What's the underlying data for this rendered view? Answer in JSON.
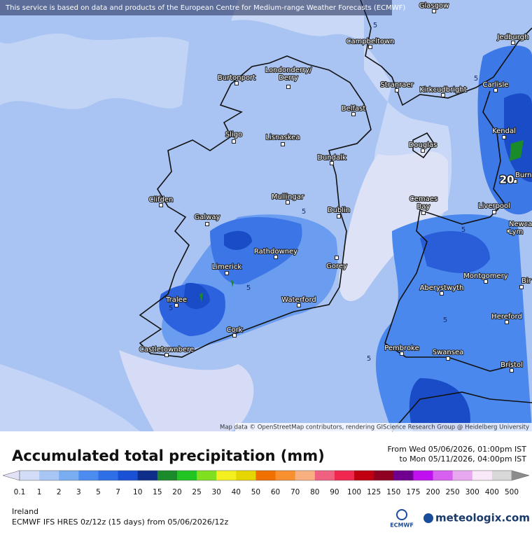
{
  "banner": "This service is based on data and products of the European Centre for Medium-range Weather Forecasts (ECMWF)",
  "attribution": "Map data © OpenStreetMap contributors, rendering GIScience Research Group @ Heidelberg University",
  "cities": [
    [
      "Glasgow"
    ],
    [
      "Campbeltown"
    ],
    [
      "Jedburgh"
    ],
    [
      "Burtonport"
    ],
    [
      "Londonderry/",
      "Derry"
    ],
    [
      "Stranraer"
    ],
    [
      "Kirkcudbright"
    ],
    [
      "Carlisle"
    ],
    [
      "Belfast"
    ],
    [
      "Sligo"
    ],
    [
      "Lisnaskea"
    ],
    [
      "Kendal"
    ],
    [
      "Douglas"
    ],
    [
      "Dundalk"
    ],
    [
      "Burn"
    ],
    [
      "Clifden"
    ],
    [
      "Mullingar"
    ],
    [
      "Cemaes",
      "Bay"
    ],
    [
      "Liverpool"
    ],
    [
      "Dublin"
    ],
    [
      "Galway"
    ],
    [
      "Newca",
      "Lym"
    ],
    [
      "Rathdowney"
    ],
    [
      "Limerick"
    ],
    [
      "Gorey"
    ],
    [
      "Montgomery"
    ],
    [
      "Bir"
    ],
    [
      "Aberystwyth"
    ],
    [
      "Tralee"
    ],
    [
      "Waterford"
    ],
    [
      "Hereford"
    ],
    [
      "Cork"
    ],
    [
      "Pembroke"
    ],
    [
      "Castletownbere"
    ],
    [
      "Swansea"
    ],
    [
      "Bristol"
    ]
  ],
  "contour_labels": [
    "5",
    "5",
    "5",
    "5",
    "5",
    "5",
    "5",
    "5",
    "20"
  ],
  "legend": {
    "title": "Accumulated total precipitation (mm)",
    "from": "From Wed 05/06/2026, 01:00pm IST",
    "to": "to Mon 05/11/2026, 04:00pm IST",
    "labels": [
      0.1,
      1,
      2,
      3,
      5,
      7,
      10,
      15,
      20,
      25,
      30,
      40,
      50,
      60,
      70,
      80,
      90,
      100,
      125,
      150,
      175,
      200,
      250,
      300,
      400,
      500
    ],
    "below_color": "#e2e2f6",
    "above_color": "#8c8c8c",
    "colors": [
      "#d2dcf6",
      "#a8c6f4",
      "#7aacf2",
      "#4c8cf0",
      "#2e6ee6",
      "#1a50d6",
      "#0e2e8a",
      "#1a8a2a",
      "#22c422",
      "#80e020",
      "#f4f020",
      "#e6d600",
      "#f07000",
      "#f89030",
      "#f8b080",
      "#f06080",
      "#f02850",
      "#c00010",
      "#900020",
      "#700090",
      "#c010f0",
      "#d860f0",
      "#e8a8f0",
      "#f8e8f8",
      "#d8d8d8"
    ]
  },
  "region": "Ireland",
  "model": "ECMWF IFS HRES 0z/12z (15 days) from  05/06/2026/12z",
  "logo_left": "ECMWF",
  "logo_right": "meteologix.com"
}
